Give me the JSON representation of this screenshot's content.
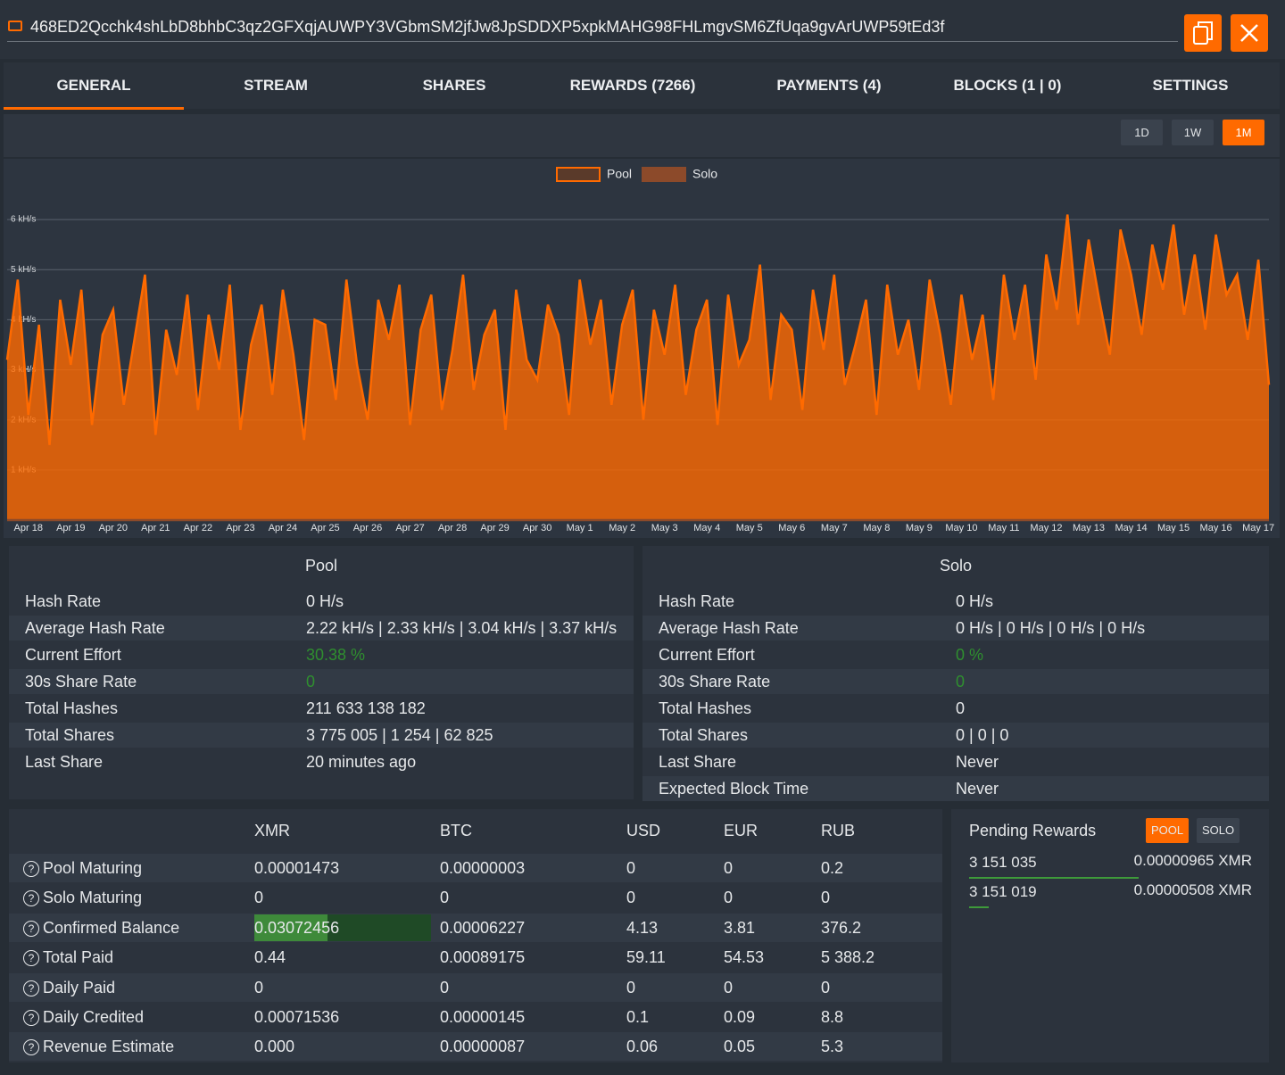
{
  "header": {
    "address": "468ED2Qcchk4shLbD8bhbC3qz2GFXqjAUWPY3VGbmSM2jfJw8JpSDDXP5xpkMAHG98FHLmgvSM6ZfUqa9gvArUWP59tEd3f"
  },
  "tabs": [
    "GENERAL",
    "STREAM",
    "SHARES",
    "REWARDS (7266)",
    "PAYMENTS (4)",
    "BLOCKS (1 | 0)",
    "SETTINGS"
  ],
  "ranges": [
    "1D",
    "1W",
    "1M"
  ],
  "chart_data": {
    "type": "line",
    "categories": [
      null,
      null,
      "Apr 18",
      null,
      null,
      null,
      "Apr 19",
      null,
      null,
      null,
      "Apr 20",
      null,
      null,
      null,
      "Apr 21",
      null,
      null,
      null,
      "Apr 22",
      null,
      null,
      null,
      "Apr 23",
      null,
      null,
      null,
      "Apr 24",
      null,
      null,
      null,
      "Apr 25",
      null,
      null,
      null,
      "Apr 26",
      null,
      null,
      null,
      "Apr 27",
      null,
      null,
      null,
      "Apr 28",
      null,
      null,
      null,
      "Apr 29",
      null,
      null,
      null,
      "Apr 30",
      null,
      null,
      null,
      "May 1",
      null,
      null,
      null,
      "May 2",
      null,
      null,
      null,
      "May 3",
      null,
      null,
      null,
      "May 4",
      null,
      null,
      null,
      "May 5",
      null,
      null,
      null,
      "May 6",
      null,
      null,
      null,
      "May 7",
      null,
      null,
      null,
      "May 8",
      null,
      null,
      null,
      "May 9",
      null,
      null,
      null,
      "May 10",
      null,
      null,
      null,
      "May 11",
      null,
      null,
      null,
      "May 12",
      null,
      null,
      null,
      "May 13",
      null,
      null,
      null,
      "May 14",
      null,
      null,
      null,
      "May 15",
      null,
      null,
      null,
      "May 16",
      null,
      null,
      null,
      "May 17",
      null
    ],
    "series": [
      {
        "name": "Pool",
        "color": "#ff6a00",
        "values": [
          3200,
          4800,
          2100,
          3900,
          1500,
          4400,
          3100,
          4600,
          1900,
          3700,
          4200,
          2300,
          3600,
          4900,
          1700,
          3800,
          2900,
          4500,
          2200,
          4100,
          3000,
          4700,
          1800,
          3500,
          4300,
          2500,
          4600,
          3300,
          1600,
          4000,
          3900,
          2400,
          4800,
          3100,
          2000,
          4400,
          3600,
          4700,
          1900,
          3800,
          4500,
          2200,
          3400,
          4900,
          2600,
          3700,
          4200,
          1800,
          4600,
          3200,
          2800,
          4300,
          3700,
          2100,
          4800,
          3500,
          4400,
          2300,
          3900,
          4600,
          2000,
          4200,
          3300,
          4700,
          2500,
          3800,
          4400,
          1900,
          4500,
          3100,
          3600,
          5100,
          2400,
          4100,
          3800,
          2200,
          4600,
          3400,
          4900,
          2700,
          3500,
          4400,
          2100,
          4700,
          3300,
          4000,
          2600,
          4800,
          3700,
          2300,
          4500,
          3200,
          4100,
          2400,
          4900,
          3600,
          4700,
          2800,
          5300,
          4200,
          6100,
          3900,
          5600,
          4400,
          3300,
          5800,
          4900,
          3700,
          5500,
          4600,
          5900,
          4100,
          5300,
          3800,
          5700,
          4500,
          4900,
          3600,
          5200,
          2700
        ]
      },
      {
        "name": "Solo",
        "color": "#8c4a2a",
        "values": [
          0,
          0,
          0,
          0,
          0,
          0,
          0,
          0,
          0,
          0,
          0,
          0,
          0,
          0,
          0,
          0,
          0,
          0,
          0,
          0,
          0,
          0,
          0,
          0,
          0,
          0,
          0,
          0,
          0,
          0,
          0,
          0,
          0,
          0,
          0,
          0,
          0,
          0,
          0,
          0,
          0,
          0,
          0,
          0,
          0,
          0,
          0,
          0,
          0,
          0,
          0,
          0,
          0,
          0,
          0,
          0,
          0,
          0,
          0,
          0,
          0,
          0,
          0,
          0,
          0,
          0,
          0,
          0,
          0,
          0,
          0,
          0,
          0,
          0,
          0,
          0,
          0,
          0,
          0,
          0,
          0,
          0,
          0,
          0,
          0,
          0,
          0,
          0,
          0,
          0,
          0,
          0,
          0,
          0,
          0,
          0,
          0,
          0,
          0,
          0,
          0,
          0,
          0,
          0,
          0,
          0,
          0,
          0,
          0,
          0,
          0,
          0,
          0,
          0,
          0,
          0,
          0,
          0,
          0,
          0
        ]
      }
    ],
    "ylim": [
      0,
      6500
    ],
    "yticks": [
      {
        "value": 1000,
        "label": "1 kH/s"
      },
      {
        "value": 2000,
        "label": "2 kH/s"
      },
      {
        "value": 3000,
        "label": "3 kH/s"
      },
      {
        "value": 4000,
        "label": "4 kH/s"
      },
      {
        "value": 5000,
        "label": "5 kH/s"
      },
      {
        "value": 6000,
        "label": "6 kH/s"
      }
    ],
    "grid": true,
    "legend": "top"
  },
  "pool_stats": {
    "title": "Pool",
    "rows": [
      [
        "Hash Rate",
        "0 H/s"
      ],
      [
        "Average Hash Rate",
        "2.22 kH/s | 2.33 kH/s | 3.04 kH/s | 3.37 kH/s"
      ],
      [
        "Current Effort",
        "30.38 %"
      ],
      [
        "30s Share Rate",
        "0"
      ],
      [
        "Total Hashes",
        "211 633 138 182"
      ],
      [
        "Total Shares",
        "3 775 005 | 1 254 | 62 825"
      ],
      [
        "Last Share",
        "20 minutes ago"
      ]
    ]
  },
  "solo_stats": {
    "title": "Solo",
    "rows": [
      [
        "Hash Rate",
        "0 H/s"
      ],
      [
        "Average Hash Rate",
        "0 H/s | 0 H/s | 0 H/s | 0 H/s"
      ],
      [
        "Current Effort",
        "0 %"
      ],
      [
        "30s Share Rate",
        "0"
      ],
      [
        "Total Hashes",
        "0"
      ],
      [
        "Total Shares",
        "0 | 0 | 0"
      ],
      [
        "Last Share",
        "Never"
      ],
      [
        "Expected Block Time",
        "Never"
      ]
    ]
  },
  "balances": {
    "columns": [
      "XMR",
      "BTC",
      "USD",
      "EUR",
      "RUB"
    ],
    "rows": [
      {
        "label": "Pool Maturing",
        "values": [
          "0.00001473",
          "0.00000003",
          "0",
          "0",
          "0.2"
        ]
      },
      {
        "label": "Solo Maturing",
        "values": [
          "0",
          "0",
          "0",
          "0",
          "0"
        ]
      },
      {
        "label": "Confirmed Balance",
        "values": [
          "0.03072456",
          "0.00006227",
          "4.13",
          "3.81",
          "376.2"
        ]
      },
      {
        "label": "Total Paid",
        "values": [
          "0.44",
          "0.00089175",
          "59.11",
          "54.53",
          "5 388.2"
        ]
      },
      {
        "label": "Daily Paid",
        "values": [
          "0",
          "0",
          "0",
          "0",
          "0"
        ]
      },
      {
        "label": "Daily Credited",
        "values": [
          "0.00071536",
          "0.00000145",
          "0.1",
          "0.09",
          "8.8"
        ]
      },
      {
        "label": "Revenue Estimate",
        "values": [
          "0.000",
          "0.00000087",
          "0.06",
          "0.05",
          "5.3"
        ]
      }
    ]
  },
  "pending": {
    "title": "Pending Rewards",
    "buttons": [
      "POOL",
      "SOLO"
    ],
    "rows": [
      [
        "3 151 035",
        "0.00000965 XMR"
      ],
      [
        "3 151 019",
        "0.00000508 XMR"
      ]
    ]
  }
}
